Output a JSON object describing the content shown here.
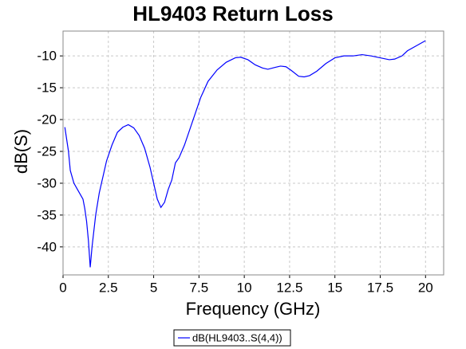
{
  "chart_data": {
    "type": "line",
    "title": "HL9403 Return Loss",
    "x_label": "Frequency (GHz)",
    "y_label": "dB(S)",
    "x": [
      0.1,
      0.3,
      0.4,
      0.6,
      0.8,
      1.0,
      1.1,
      1.2,
      1.3,
      1.4,
      1.5,
      1.6,
      1.8,
      2.0,
      2.2,
      2.4,
      2.7,
      3.0,
      3.3,
      3.6,
      3.9,
      4.2,
      4.5,
      4.8,
      5.0,
      5.2,
      5.4,
      5.6,
      5.8,
      6.0,
      6.2,
      6.4,
      6.7,
      7.0,
      7.3,
      7.6,
      8.0,
      8.5,
      9.0,
      9.5,
      9.8,
      10.2,
      10.6,
      11.0,
      11.3,
      11.7,
      12.0,
      12.3,
      12.6,
      13.0,
      13.3,
      13.6,
      14.0,
      14.5,
      15.0,
      15.5,
      16.0,
      16.5,
      17.0,
      17.5,
      18.0,
      18.3,
      18.7,
      19.0,
      19.5,
      20.0
    ],
    "series": [
      {
        "name": "dB(HL9403..S(4,4))",
        "color": "#0000ff",
        "values": [
          -21.2,
          -25,
          -28,
          -30,
          -31,
          -32,
          -32.5,
          -34,
          -36,
          -39,
          -43.2,
          -40,
          -35,
          -31.5,
          -29,
          -26.5,
          -24,
          -22,
          -21.2,
          -20.8,
          -21.3,
          -22.5,
          -24.5,
          -27.5,
          -30,
          -32.5,
          -33.8,
          -33,
          -31,
          -29.5,
          -26.8,
          -26,
          -24,
          -21.5,
          -19,
          -16.5,
          -14,
          -12.2,
          -11,
          -10.3,
          -10.2,
          -10.6,
          -11.4,
          -11.9,
          -12.1,
          -11.8,
          -11.6,
          -11.7,
          -12.3,
          -13.2,
          -13.3,
          -13.1,
          -12.4,
          -11.2,
          -10.3,
          -10.0,
          -10.0,
          -9.8,
          -10.0,
          -10.3,
          -10.6,
          -10.5,
          -10.0,
          -9.2,
          -8.4,
          -7.6
        ]
      }
    ],
    "xlim": [
      0,
      21
    ],
    "ylim": [
      -44.4,
      -6.1
    ],
    "xticks": [
      0,
      2.5,
      5,
      7.5,
      10,
      12.5,
      15,
      17.5,
      20
    ],
    "yticks": [
      -40,
      -35,
      -30,
      -25,
      -20,
      -15,
      -10
    ],
    "grid": true
  }
}
